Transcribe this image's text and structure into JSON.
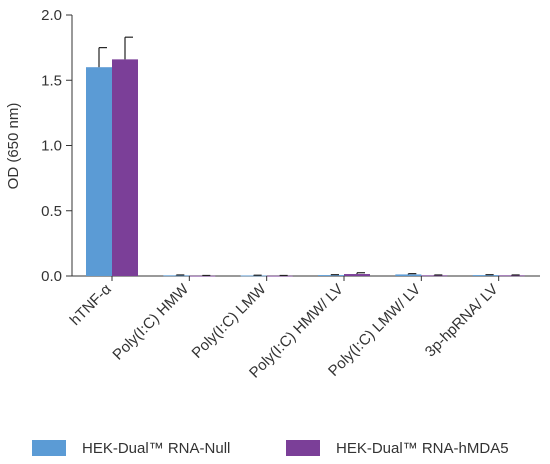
{
  "chart_data": {
    "type": "bar",
    "ylabel": "OD (650 nm)",
    "xlabel": "",
    "ylim": [
      0,
      2.0
    ],
    "yticks": [
      "0.0",
      "0.5",
      "1.0",
      "1.5",
      "2.0"
    ],
    "grid": false,
    "legend_position": "bottom",
    "categories": [
      "hTNF-α",
      "Poly(I:C) HMW",
      "Poly(I:C) LMW",
      "Poly(I:C) HMW/ LV",
      "Poly(I:C) LMW/ LV",
      "3p-hpRNA/ LV"
    ],
    "series": [
      {
        "name": "HEK-Dual™ RNA-Null",
        "color": "#5b9bd5",
        "values": [
          1.6,
          0.005,
          0.004,
          0.007,
          0.012,
          0.007
        ],
        "errors": [
          0.15,
          0.003,
          0.002,
          0.003,
          0.006,
          0.003
        ]
      },
      {
        "name": "HEK-Dual™ RNA-hMDA5",
        "color": "#7b3f98",
        "values": [
          1.66,
          0.002,
          0.002,
          0.015,
          0.005,
          0.005
        ],
        "errors": [
          0.17,
          0.002,
          0.002,
          0.01,
          0.003,
          0.003
        ]
      }
    ]
  }
}
